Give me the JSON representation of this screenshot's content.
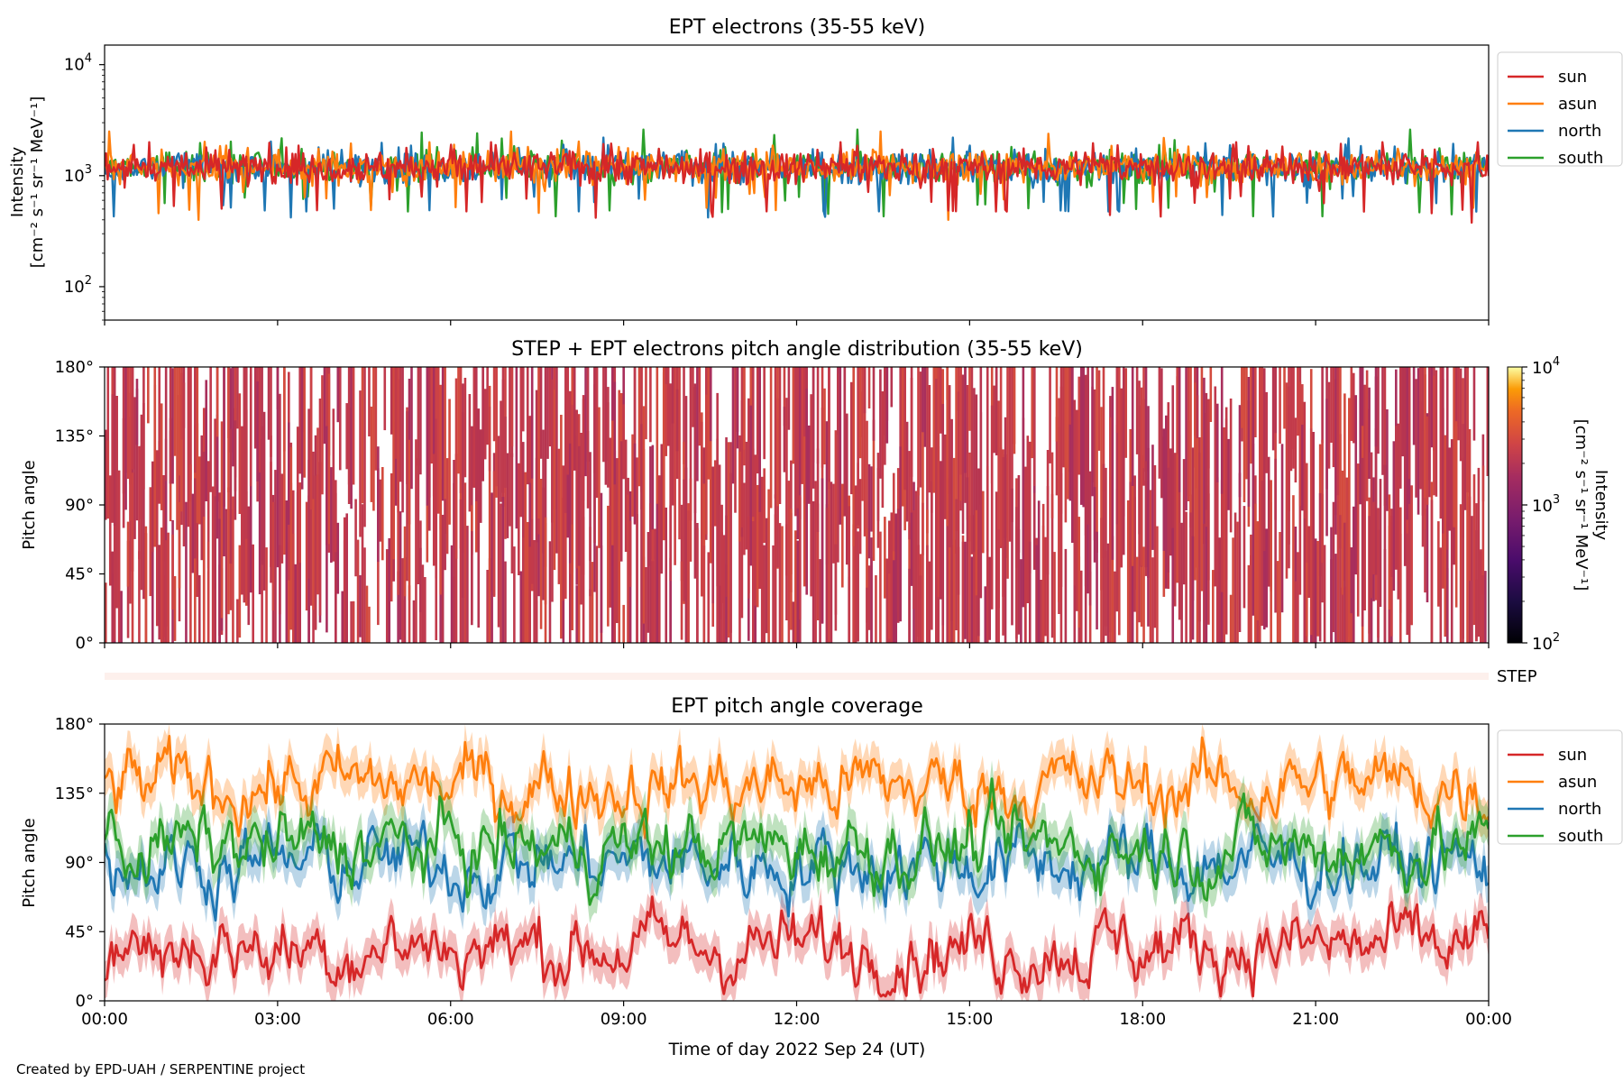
{
  "footer": "Created by EPD-UAH / SERPENTINE project",
  "colors": {
    "sun": "#d62728",
    "asun": "#ff7f0e",
    "north": "#1f77b4",
    "south": "#2ca02c"
  },
  "chart_data": [
    {
      "type": "line",
      "title": "EPT electrons (35-55 keV)",
      "ylabel": "Intensity",
      "ylabel_units": "[cm⁻² s⁻¹ sr⁻¹ MeV⁻¹]",
      "yscale": "log",
      "ylim": [
        50,
        15000
      ],
      "yticks": [
        {
          "base": "10",
          "exp": "2"
        },
        {
          "base": "10",
          "exp": "3"
        },
        {
          "base": "10",
          "exp": "4"
        }
      ],
      "x_range": [
        "00:00",
        "24:00"
      ],
      "legend": "outside-right",
      "series": [
        {
          "name": "sun",
          "typical": 1200,
          "min_approx": 300,
          "max_approx": 2000
        },
        {
          "name": "asun",
          "typical": 1200,
          "min_approx": 400,
          "max_approx": 2500
        },
        {
          "name": "north",
          "typical": 1200,
          "min_approx": 420,
          "max_approx": 2200
        },
        {
          "name": "south",
          "typical": 1200,
          "min_approx": 430,
          "max_approx": 2600
        }
      ]
    },
    {
      "type": "heatmap",
      "title": "STEP + EPT electrons pitch angle distribution (35-55 keV)",
      "ylabel": "Pitch angle",
      "ylim": [
        0,
        180
      ],
      "yticks": [
        "0°",
        "45°",
        "90°",
        "135°",
        "180°"
      ],
      "colorbar": {
        "label": "Intensity",
        "units": "[cm⁻² s⁻¹ sr⁻¹ MeV⁻¹]",
        "scale": "log",
        "range": [
          100,
          10000
        ],
        "ticks": [
          {
            "base": "10",
            "exp": "2"
          },
          {
            "base": "10",
            "exp": "3"
          },
          {
            "base": "10",
            "exp": "4"
          }
        ],
        "colormap": "inferno"
      },
      "typical_value": 1200
    },
    {
      "type": "heatmap",
      "title": "",
      "label": "STEP",
      "note": "single flat strip"
    },
    {
      "type": "line",
      "title": "EPT pitch angle coverage",
      "ylabel": "Pitch angle",
      "xlabel": "Time of day 2022 Sep 24 (UT)",
      "ylim": [
        0,
        180
      ],
      "yticks": [
        "0°",
        "45°",
        "90°",
        "135°",
        "180°"
      ],
      "xticks": [
        "00:00",
        "03:00",
        "06:00",
        "09:00",
        "12:00",
        "15:00",
        "18:00",
        "21:00",
        "00:00"
      ],
      "legend": "outside-right",
      "series": [
        {
          "name": "sun",
          "typical_deg": 35,
          "band": "shaded ±spread"
        },
        {
          "name": "asun",
          "typical_deg": 140,
          "band": "shaded ±spread"
        },
        {
          "name": "north",
          "typical_deg": 90,
          "band": "shaded ±spread"
        },
        {
          "name": "south",
          "typical_deg": 100,
          "band": "shaded ±spread"
        }
      ]
    }
  ]
}
